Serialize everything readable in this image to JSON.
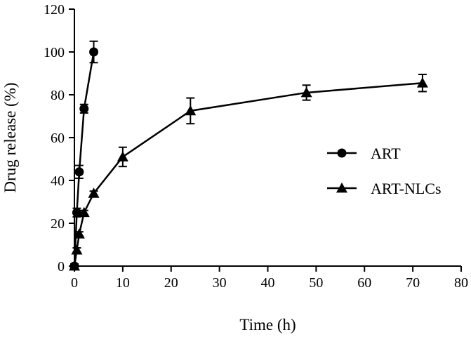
{
  "chart_data": {
    "type": "line",
    "xlabel": "Time (h)",
    "ylabel": "Drug release (%)",
    "xlim": [
      0,
      80
    ],
    "ylim": [
      0,
      120
    ],
    "xticks": [
      0,
      10,
      20,
      30,
      40,
      50,
      60,
      70,
      80
    ],
    "yticks": [
      0,
      20,
      40,
      60,
      80,
      100,
      120
    ],
    "grid": false,
    "legend_position": "right",
    "series": [
      {
        "name": "ART",
        "marker": "circle",
        "color": "#000000",
        "points": [
          {
            "x": 0,
            "y": 0,
            "err": 1
          },
          {
            "x": 0.5,
            "y": 25,
            "err": 2
          },
          {
            "x": 1,
            "y": 44,
            "err": 3
          },
          {
            "x": 2,
            "y": 73.5,
            "err": 2
          },
          {
            "x": 4,
            "y": 100,
            "err": 5
          }
        ]
      },
      {
        "name": "ART-NLCs",
        "marker": "triangle",
        "color": "#000000",
        "points": [
          {
            "x": 0,
            "y": 0,
            "err": 1
          },
          {
            "x": 0.5,
            "y": 7.5,
            "err": 1
          },
          {
            "x": 1,
            "y": 15,
            "err": 1
          },
          {
            "x": 2,
            "y": 25,
            "err": 1
          },
          {
            "x": 4,
            "y": 34,
            "err": 1
          },
          {
            "x": 10,
            "y": 51,
            "err": 4.5
          },
          {
            "x": 24,
            "y": 72.5,
            "err": 6
          },
          {
            "x": 48,
            "y": 81,
            "err": 3.5
          },
          {
            "x": 72,
            "y": 85.5,
            "err": 4
          }
        ]
      }
    ]
  }
}
